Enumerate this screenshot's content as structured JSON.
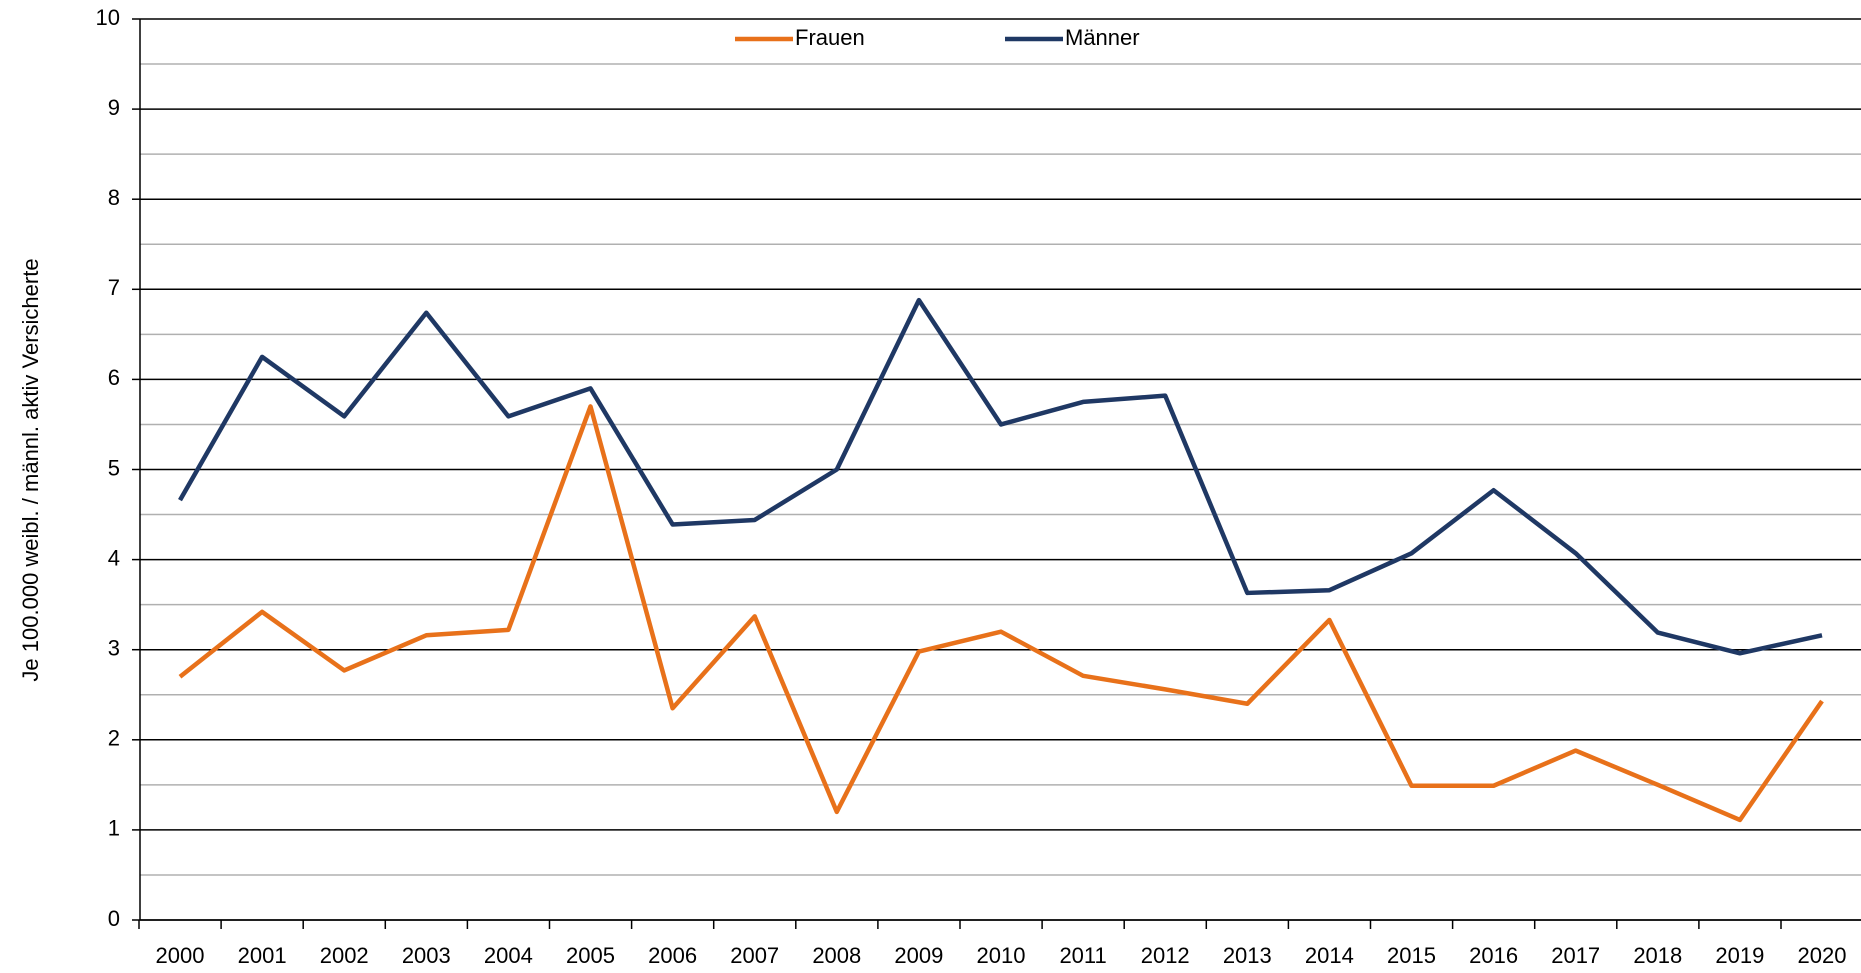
{
  "chart_data": {
    "type": "line",
    "y_label": "Je 100.000 weibl. / männl. aktiv Versicherte",
    "categories": [
      "2000",
      "2001",
      "2002",
      "2003",
      "2004",
      "2005",
      "2006",
      "2007",
      "2008",
      "2009",
      "2010",
      "2011",
      "2012",
      "2013",
      "2014",
      "2015",
      "2016",
      "2017",
      "2018",
      "2019",
      "2020"
    ],
    "series": [
      {
        "name": "Frauen",
        "color": "#e8711a",
        "values": [
          2.7,
          3.42,
          2.77,
          3.16,
          3.22,
          5.7,
          2.35,
          3.37,
          1.2,
          2.98,
          3.2,
          2.71,
          2.56,
          2.4,
          3.33,
          1.49,
          1.49,
          1.88,
          1.5,
          1.11,
          2.43
        ]
      },
      {
        "name": "Männer",
        "color": "#1f3864",
        "values": [
          4.66,
          6.25,
          5.59,
          6.74,
          5.59,
          5.9,
          4.39,
          4.44,
          5.0,
          6.88,
          5.5,
          5.75,
          5.82,
          3.63,
          3.66,
          4.07,
          4.77,
          4.07,
          3.19,
          2.96,
          3.16
        ]
      }
    ],
    "ylim": [
      0,
      10
    ],
    "yticks": [
      0,
      1,
      2,
      3,
      4,
      5,
      6,
      7,
      8,
      9,
      10
    ],
    "minor_yticks": [
      0.5,
      1.5,
      2.5,
      3.5,
      4.5,
      5.5,
      6.5,
      7.5,
      8.5,
      9.5
    ],
    "grid": true,
    "legend": "top"
  }
}
